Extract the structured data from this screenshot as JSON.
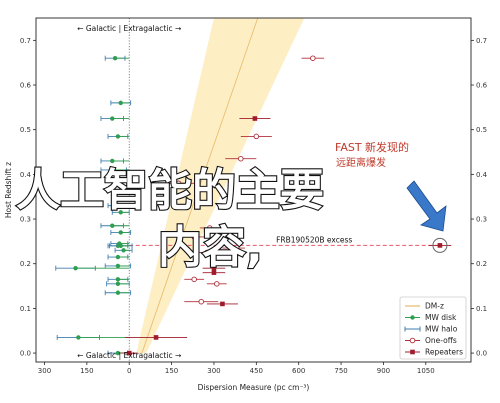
{
  "chart_data": {
    "type": "scatter",
    "xlabel": "Dispersion Measure (pc cm⁻³)",
    "ylabel": "Host Redshift z",
    "xlim": [
      -330,
      1210
    ],
    "ylim": [
      -0.02,
      0.75
    ],
    "x_ticks": [
      -300,
      -150,
      0,
      150,
      300,
      450,
      600,
      750,
      900,
      1050
    ],
    "x_tick_labels": [
      "300",
      "150",
      "0",
      "150",
      "300",
      "450",
      "600",
      "750",
      "900",
      "1050"
    ],
    "y_ticks": [
      0.0,
      0.1,
      0.2,
      0.3,
      0.4,
      0.5,
      0.6,
      0.7
    ],
    "y_tick_labels": [
      "0.0",
      "0.1",
      "0.2",
      "0.3",
      "0.4",
      "0.5",
      "0.6",
      "0.7"
    ],
    "top_annotation": "← Galactic | Extragalactic →",
    "bottom_annotation": "← Galactic | Extragalactic →",
    "frb_label": "FRB190520B excess",
    "fast_label": "FAST 新发现的",
    "fast_label_2": "远距离爆发",
    "overlay_text_line1": "人工智能的主要",
    "overlay_text_line2": "内容,",
    "highlight_y": 0.241,
    "legend": {
      "position": "lower-right",
      "entries": [
        "DM-z",
        "MW disk",
        "MW halo",
        "One-offs",
        "Repeaters"
      ]
    },
    "colors": {
      "dmz_band": "#fdeec4",
      "dmz_line": "#e8b96a",
      "mw_disk": "#2e9e4f",
      "mw_halo": "#3f7fb0",
      "one_offs": "#b0303a",
      "repeaters": "#a01c2c",
      "dash": "#e8576f",
      "arrow": "#3a78c9"
    },
    "mw_disk": {
      "x": [
        -50,
        -30,
        -60,
        -40,
        -60,
        -55,
        -25,
        -40,
        -30,
        -60,
        -30,
        -35,
        -40,
        -30,
        -20,
        -40,
        -40,
        -40,
        -190,
        -40,
        -40,
        -180,
        -40
      ],
      "y": [
        0.66,
        0.56,
        0.525,
        0.485,
        0.43,
        0.41,
        0.36,
        0.33,
        0.315,
        0.285,
        0.27,
        0.245,
        0.24,
        0.24,
        0.23,
        0.215,
        0.195,
        0.165,
        0.19,
        0.155,
        0.135,
        0.035,
        0.0
      ],
      "err": [
        35,
        35,
        40,
        35,
        40,
        45,
        35,
        35,
        30,
        40,
        35,
        30,
        35,
        40,
        30,
        35,
        45,
        35,
        70,
        40,
        45,
        75,
        35
      ]
    },
    "one_offs": {
      "x": [
        650,
        450,
        395,
        175,
        285,
        230,
        370,
        275,
        310,
        230,
        255
      ],
      "y": [
        0.66,
        0.485,
        0.435,
        0.38,
        0.28,
        0.26,
        0.235,
        0.225,
        0.155,
        0.165,
        0.115
      ],
      "err": [
        40,
        55,
        55,
        55,
        35,
        50,
        40,
        30,
        35,
        35,
        60
      ]
    },
    "repeaters": {
      "x": [
        445,
        300,
        300,
        330,
        95,
        0
      ],
      "y": [
        0.525,
        0.19,
        0.18,
        0.11,
        0.035,
        0.0
      ],
      "err": [
        55,
        40,
        40,
        55,
        110,
        30
      ]
    },
    "frb190520b": {
      "x": 1100,
      "y": 0.241,
      "err": 40
    }
  }
}
